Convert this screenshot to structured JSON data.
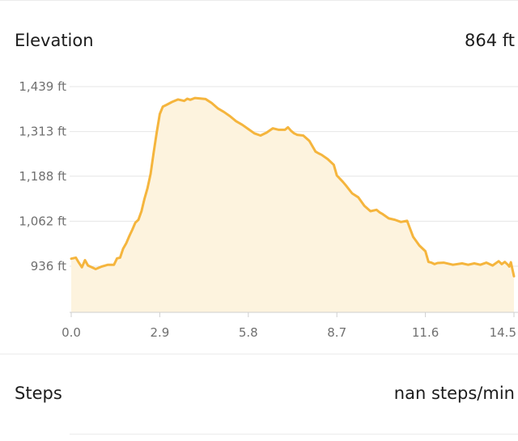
{
  "elevation": {
    "title": "Elevation",
    "value": "864 ft"
  },
  "steps": {
    "title": "Steps",
    "value": "nan steps/min"
  },
  "colors": {
    "line": "#f5b53d",
    "fill": "#fdf3de",
    "grid": "#e6e6e6",
    "axis": "#cfcfcf"
  },
  "chart_data": {
    "type": "area",
    "xlabel": "",
    "ylabel": "",
    "grid": true,
    "xlim": [
      0.0,
      14.5
    ],
    "ylim": [
      936,
      1439
    ],
    "y_tick_values": [
      936,
      1062,
      1188,
      1313,
      1439
    ],
    "y_tick_labels": [
      "936 ft",
      "1,062 ft",
      "1,188 ft",
      "1,313 ft",
      "1,439 ft"
    ],
    "x_tick_values": [
      0.0,
      2.9,
      5.8,
      8.7,
      11.6,
      14.5
    ],
    "x_tick_labels": [
      "0.0",
      "2.9",
      "5.8",
      "8.7",
      "11.6",
      "14.5"
    ],
    "series": [
      {
        "x": [
          0.0,
          0.15,
          0.25,
          0.35,
          0.45,
          0.55,
          0.8,
          1.0,
          1.2,
          1.4,
          1.5,
          1.6,
          1.7,
          1.8,
          1.9,
          2.0,
          2.1,
          2.2,
          2.3,
          2.4,
          2.5,
          2.6,
          2.7,
          2.8,
          2.9,
          3.0,
          3.1,
          3.3,
          3.5,
          3.7,
          3.8,
          3.9,
          4.05,
          4.2,
          4.4,
          4.6,
          4.8,
          5.0,
          5.2,
          5.4,
          5.6,
          5.8,
          6.0,
          6.2,
          6.4,
          6.6,
          6.8,
          7.0,
          7.1,
          7.2,
          7.3,
          7.35,
          7.4,
          7.6,
          7.8,
          8.0,
          8.1,
          8.2,
          8.4,
          8.6,
          8.7,
          8.9,
          9.0,
          9.2,
          9.4,
          9.6,
          9.8,
          10.0,
          10.1,
          10.2,
          10.4,
          10.6,
          10.8,
          11.0,
          11.2,
          11.4,
          11.6,
          11.7,
          11.8,
          11.9,
          12.0,
          12.2,
          12.5,
          12.8,
          13.0,
          13.2,
          13.4,
          13.6,
          13.8,
          14.0,
          14.1,
          14.2,
          14.3,
          14.35,
          14.4,
          14.5
        ],
        "values": [
          957,
          960,
          946,
          933,
          953,
          938,
          928,
          935,
          940,
          940,
          958,
          960,
          985,
          1000,
          1020,
          1038,
          1058,
          1066,
          1090,
          1125,
          1155,
          1195,
          1255,
          1310,
          1362,
          1383,
          1387,
          1396,
          1403,
          1399,
          1405,
          1402,
          1407,
          1406,
          1404,
          1393,
          1378,
          1368,
          1356,
          1342,
          1332,
          1320,
          1308,
          1302,
          1310,
          1322,
          1318,
          1318,
          1325,
          1315,
          1308,
          1306,
          1304,
          1302,
          1287,
          1257,
          1252,
          1248,
          1236,
          1220,
          1190,
          1172,
          1162,
          1140,
          1129,
          1105,
          1090,
          1094,
          1087,
          1082,
          1070,
          1066,
          1060,
          1063,
          1018,
          994,
          978,
          948,
          946,
          942,
          945,
          946,
          940,
          944,
          940,
          944,
          940,
          946,
          938,
          950,
          942,
          948,
          940,
          935,
          947,
          908
        ]
      }
    ]
  }
}
